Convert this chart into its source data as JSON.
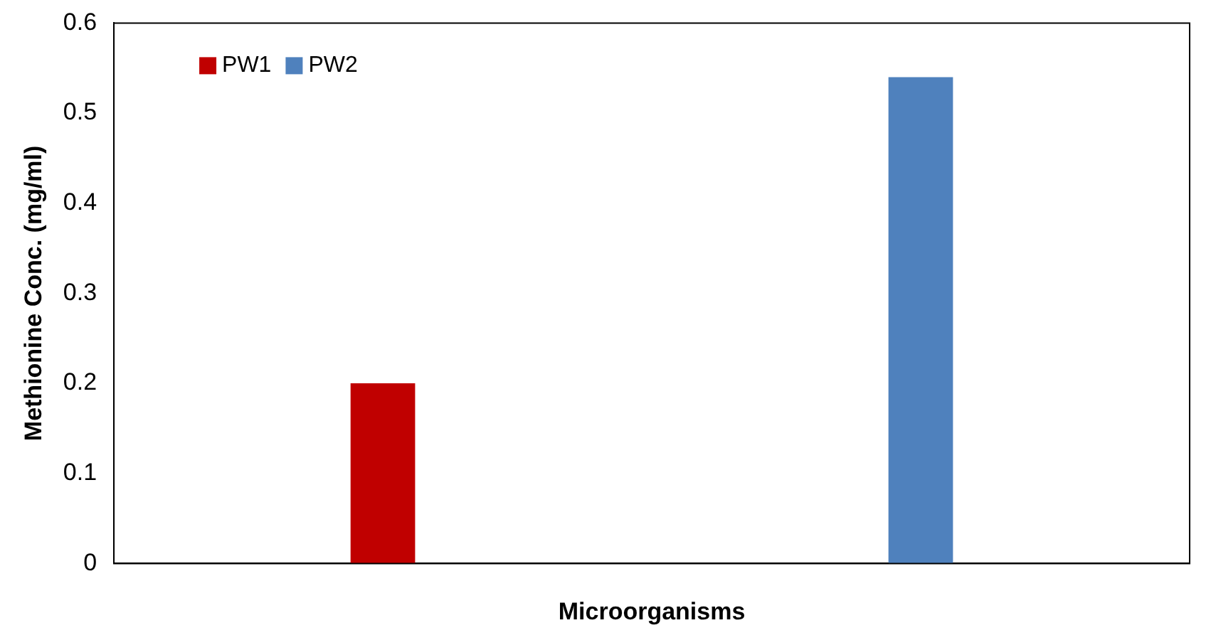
{
  "chart_data": {
    "type": "bar",
    "xlabel": "Microorganisms",
    "ylabel": "Methionine Conc. (mg/ml)",
    "categories": [
      null,
      null
    ],
    "series": [
      {
        "name": "PW1",
        "color": "#c00000",
        "values": [
          0.2,
          null
        ]
      },
      {
        "name": "PW2",
        "color": "#4f81bd",
        "values": [
          null,
          0.54
        ]
      }
    ],
    "ylim": [
      0,
      0.6
    ],
    "yticks": [
      0,
      0.1,
      0.2,
      0.3,
      0.4,
      0.5,
      0.6
    ],
    "grid": false,
    "legend": "top left"
  }
}
